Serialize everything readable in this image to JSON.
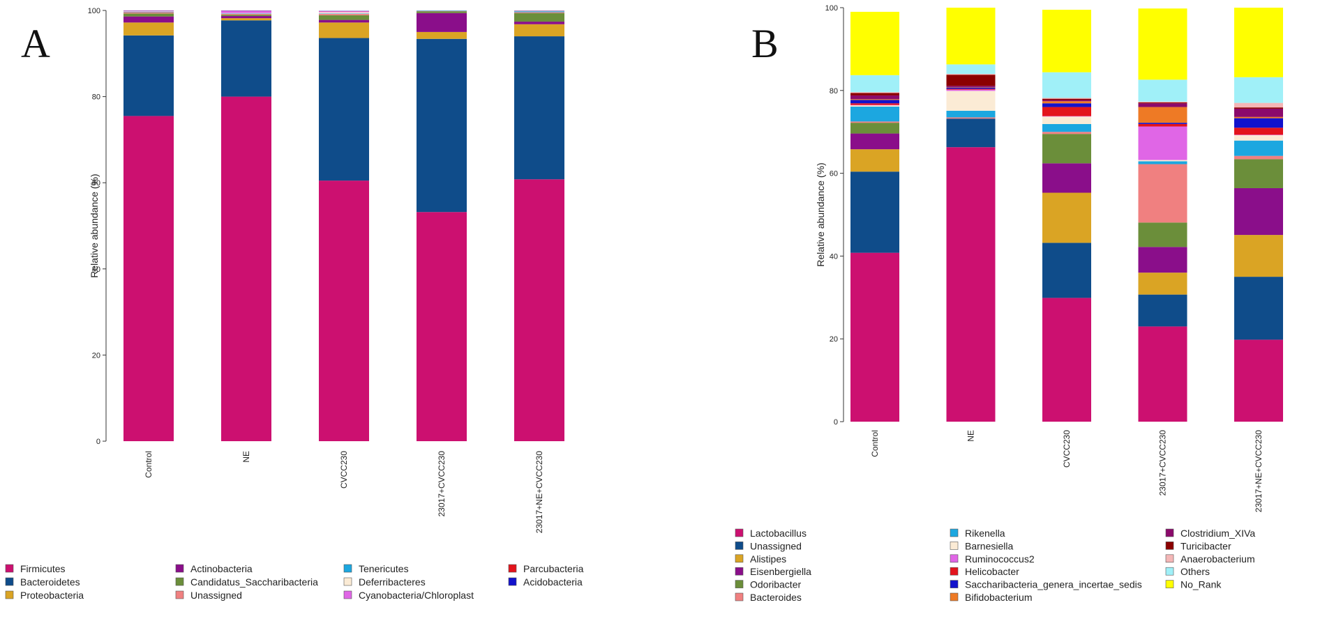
{
  "chart_data": [
    {
      "type": "bar",
      "stacked": true,
      "panel_label": "A",
      "title": "",
      "xlabel": "",
      "ylabel": "Relative abundance (%)",
      "ylim": [
        0,
        100
      ],
      "yticks": [
        0,
        20,
        40,
        60,
        80,
        100
      ],
      "categories": [
        "Control",
        "NE",
        "CVCC230",
        "23017+CVCC230",
        "23017+NE+CVCC230"
      ],
      "series": [
        {
          "name": "Firmicutes",
          "color": "#CC1070",
          "values": [
            75.5,
            80.0,
            60.5,
            53.2,
            60.8
          ]
        },
        {
          "name": "Bacteroidetes",
          "color": "#0F4C8A",
          "values": [
            18.7,
            17.7,
            33.1,
            40.2,
            33.2
          ]
        },
        {
          "name": "Proteobacteria",
          "color": "#DAA424",
          "values": [
            3.0,
            0.5,
            3.6,
            1.6,
            2.8
          ]
        },
        {
          "name": "Actinobacteria",
          "color": "#8A0E8A",
          "values": [
            1.4,
            0.5,
            0.6,
            4.4,
            0.6
          ]
        },
        {
          "name": "Candidatus_Saccharibacteria",
          "color": "#6B8E3A",
          "values": [
            0.7,
            0.3,
            1.1,
            0.4,
            2.0
          ]
        },
        {
          "name": "Unassigned",
          "color": "#F08080",
          "values": [
            0.3,
            0.2,
            0.3,
            0.1,
            0.2
          ]
        },
        {
          "name": "Tenericutes",
          "color": "#1CA7E0",
          "values": [
            0.1,
            0.1,
            0.1,
            0.1,
            0.2
          ]
        },
        {
          "name": "Deferribacteres",
          "color": "#FBEBD5",
          "values": [
            0.1,
            0.1,
            0.3,
            0.1,
            0.1
          ]
        },
        {
          "name": "Cyanobacteria/Chloroplast",
          "color": "#E066E6",
          "values": [
            0.1,
            0.5,
            0.2,
            0.0,
            0.0
          ]
        },
        {
          "name": "Parcubacteria",
          "color": "#E3141C",
          "values": [
            0.05,
            0.05,
            0.05,
            0.0,
            0.05
          ]
        },
        {
          "name": "Acidobacteria",
          "color": "#1212CC",
          "values": [
            0.05,
            0.05,
            0.05,
            0.0,
            0.05
          ]
        }
      ],
      "legend": {
        "placement": "bottom",
        "columns": [
          [
            "Firmicutes",
            "Bacteroidetes",
            "Proteobacteria"
          ],
          [
            "Actinobacteria",
            "Candidatus_Saccharibacteria",
            "Unassigned"
          ],
          [
            "Tenericutes",
            "Deferribacteres",
            "Cyanobacteria/Chloroplast"
          ],
          [
            "Parcubacteria",
            "Acidobacteria"
          ]
        ]
      }
    },
    {
      "type": "bar",
      "stacked": true,
      "panel_label": "B",
      "title": "",
      "xlabel": "",
      "ylabel": "Relative abundance (%)",
      "ylim": [
        0,
        100
      ],
      "yticks": [
        0,
        20,
        40,
        60,
        80,
        100
      ],
      "categories": [
        "Control",
        "NE",
        "CVCC230",
        "23017+CVCC230",
        "23017+NE+CVCC230"
      ],
      "series": [
        {
          "name": "Lactobacillus",
          "color": "#CC1070",
          "values": [
            40.8,
            66.3,
            29.9,
            23.0,
            19.8
          ]
        },
        {
          "name": "Unassigned",
          "color": "#0F4C8A",
          "values": [
            19.6,
            6.9,
            13.3,
            7.7,
            15.2
          ]
        },
        {
          "name": "Alistipes",
          "color": "#DAA424",
          "values": [
            5.4,
            0.0,
            12.1,
            5.3,
            10.1
          ]
        },
        {
          "name": "Eisenbergiella",
          "color": "#8A0E8A",
          "values": [
            3.8,
            0.0,
            7.1,
            6.2,
            11.3
          ]
        },
        {
          "name": "Odoribacter",
          "color": "#6B8E3A",
          "values": [
            2.6,
            0.0,
            7.1,
            5.9,
            7.0
          ]
        },
        {
          "name": "Bacteroides",
          "color": "#F08080",
          "values": [
            0.3,
            0.3,
            0.5,
            14.1,
            0.8
          ]
        },
        {
          "name": "Rikenella",
          "color": "#1CA7E0",
          "values": [
            3.6,
            1.6,
            1.9,
            0.7,
            3.7
          ]
        },
        {
          "name": "Barnesiella",
          "color": "#FBEBD5",
          "values": [
            0.3,
            4.8,
            1.8,
            0.3,
            1.3
          ]
        },
        {
          "name": "Ruminococcus2",
          "color": "#E066E6",
          "values": [
            0.1,
            0.3,
            0.1,
            8.1,
            0.1
          ]
        },
        {
          "name": "Helicobacter",
          "color": "#E3141C",
          "values": [
            0.4,
            0.2,
            2.2,
            0.6,
            1.7
          ]
        },
        {
          "name": "Saccharibacteria_genera_incertae_sedis",
          "color": "#1212CC",
          "values": [
            0.8,
            0.3,
            0.9,
            0.3,
            2.3
          ]
        },
        {
          "name": "Bifidobacterium",
          "color": "#EE7A25",
          "values": [
            0.2,
            0.1,
            0.5,
            3.8,
            0.3
          ]
        },
        {
          "name": "Clostridium_XIVa",
          "color": "#8B0A6B",
          "values": [
            0.9,
            0.3,
            0.3,
            0.9,
            2.0
          ]
        },
        {
          "name": "Turicibacter",
          "color": "#8B0000",
          "values": [
            0.6,
            2.7,
            0.3,
            0.2,
            0.3
          ]
        },
        {
          "name": "Anaerobacterium",
          "color": "#F4B6B6",
          "values": [
            0.2,
            0.2,
            0.2,
            0.2,
            1.1
          ]
        },
        {
          "name": "Others",
          "color": "#A0F0F8",
          "values": [
            4.1,
            2.3,
            6.2,
            5.3,
            6.2
          ]
        },
        {
          "name": "No_Rank",
          "color": "#FFFF00",
          "values": [
            15.3,
            13.7,
            15.1,
            17.2,
            16.8
          ]
        }
      ],
      "legend": {
        "placement": "bottom",
        "columns": [
          [
            "Lactobacillus",
            "Unassigned",
            "Alistipes",
            "Eisenbergiella",
            "Odoribacter",
            "Bacteroides"
          ],
          [
            "Rikenella",
            "Barnesiella",
            "Ruminococcus2",
            "Helicobacter",
            "Saccharibacteria_genera_incertae_sedis",
            "Bifidobacterium"
          ],
          [
            "Clostridium_XIVa",
            "Turicibacter",
            "Anaerobacterium",
            "Others",
            "No_Rank"
          ]
        ]
      }
    }
  ]
}
